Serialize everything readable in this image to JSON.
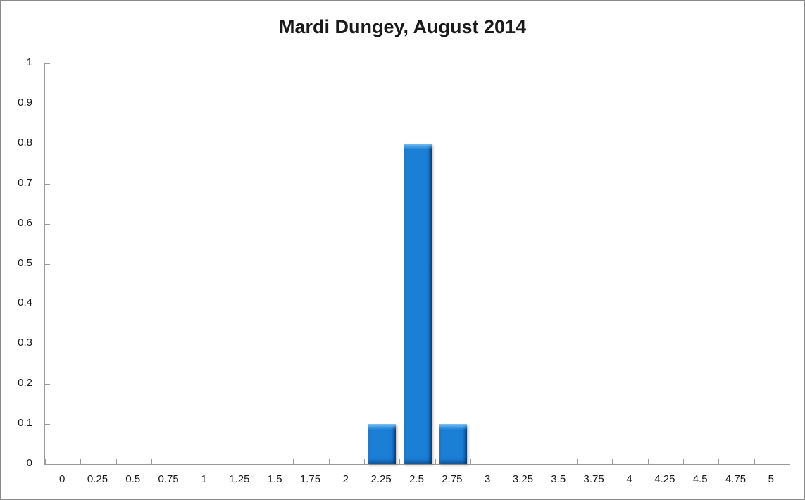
{
  "chart_data": {
    "type": "bar",
    "title": "Mardi Dungey, August 2014",
    "categories": [
      "0",
      "0.25",
      "0.5",
      "0.75",
      "1",
      "1.25",
      "1.5",
      "1.75",
      "2",
      "2.25",
      "2.5",
      "2.75",
      "3",
      "3.25",
      "3.5",
      "3.75",
      "4",
      "4.25",
      "4.5",
      "4.75",
      "5"
    ],
    "values": [
      0,
      0,
      0,
      0,
      0,
      0,
      0,
      0,
      0,
      0.1,
      0.8,
      0.1,
      0,
      0,
      0,
      0,
      0,
      0,
      0,
      0,
      0
    ],
    "xlabel": "",
    "ylabel": "",
    "ylim": [
      0,
      1
    ],
    "ytick_labels": [
      "0",
      "0.1",
      "0.2",
      "0.3",
      "0.4",
      "0.5",
      "0.6",
      "0.7",
      "0.8",
      "0.9",
      "1"
    ],
    "grid": false,
    "legend_position": "none"
  },
  "colors": {
    "bar_fill": "#1B7FD6",
    "bar_edge_dark": "#0C5FAB",
    "bar_top_highlight": "#7CC3F5",
    "axis_line": "#9A9A9A",
    "frame_border": "#8A8A8A",
    "text": "#1A1A1A",
    "background": "#FFFFFF"
  }
}
